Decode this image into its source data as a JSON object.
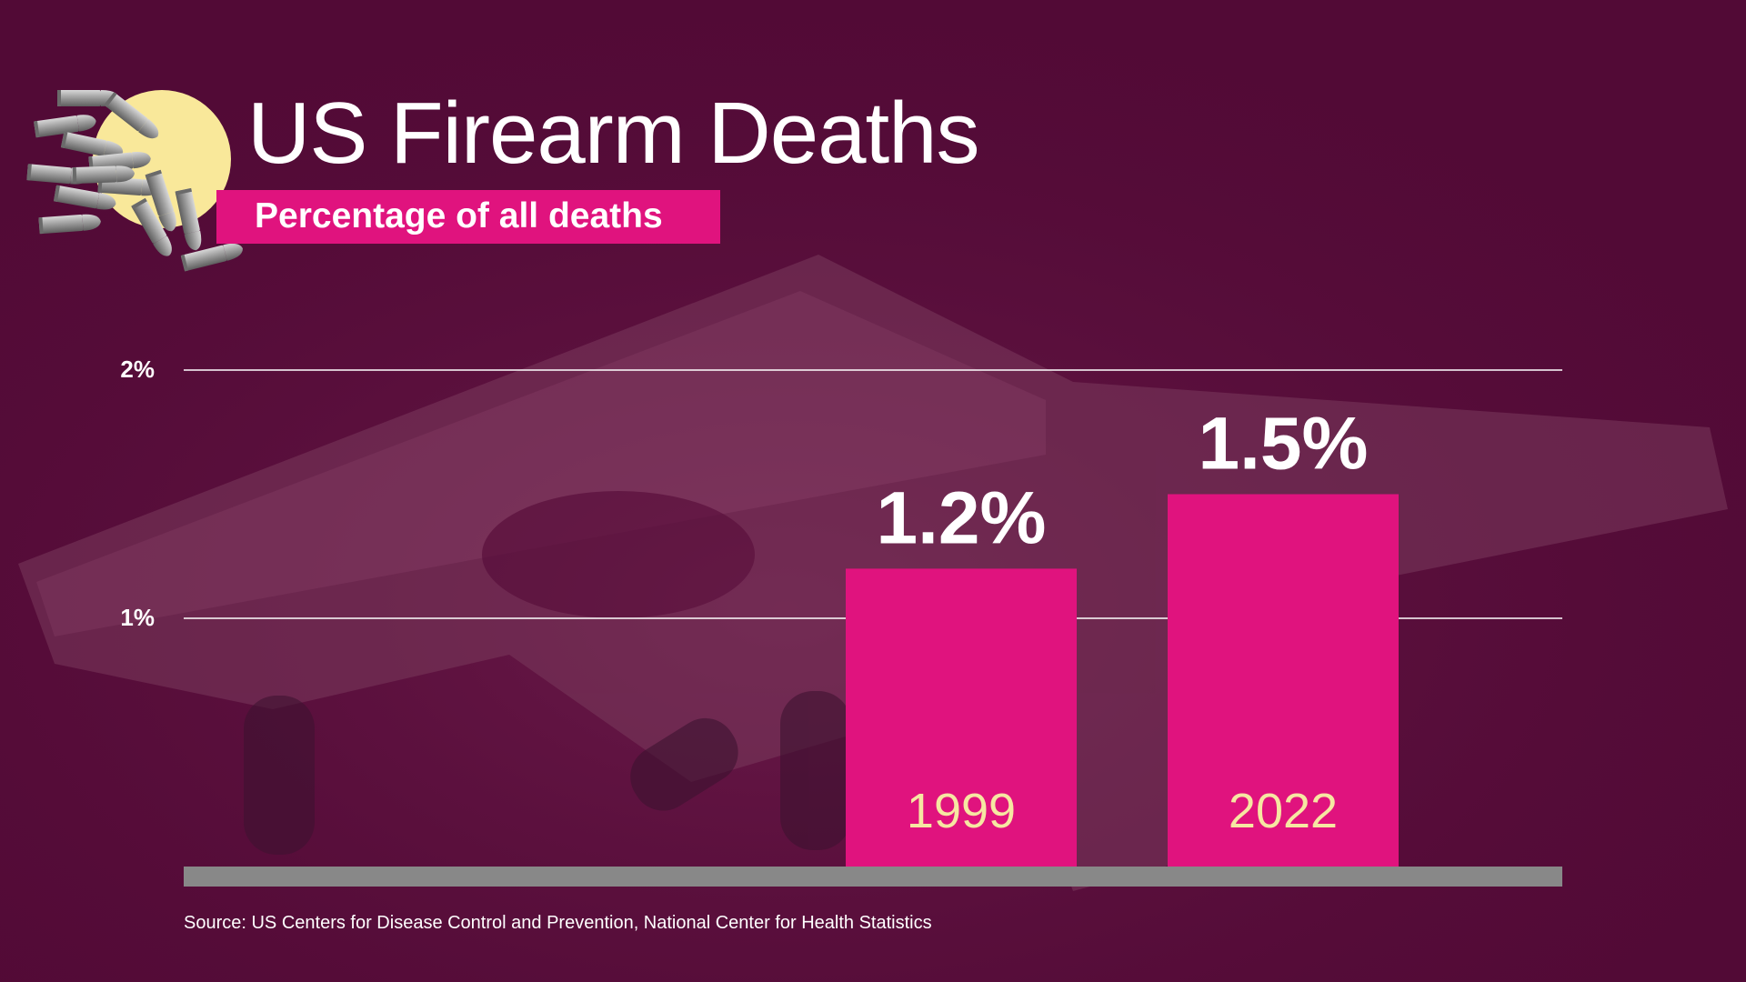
{
  "header": {
    "title": "US Firearm Deaths",
    "subtitle": "Percentage of all deaths"
  },
  "footer": {
    "source": "Source: US Centers for Disease Control and Prevention, National Center for Health Statistics"
  },
  "colors": {
    "background": "#520a36",
    "bar": "#e0137e",
    "category_label": "#f6e7a2",
    "gridline": "#ffffff",
    "baseline": "#888888",
    "sun": "#f9e89a"
  },
  "decoration": {
    "icon": "bullets-icon"
  },
  "chart_data": {
    "type": "bar",
    "categories": [
      "1999",
      "2022"
    ],
    "values": [
      1.2,
      1.5
    ],
    "value_labels": [
      "1.2%",
      "1.5%"
    ],
    "yticks": [
      {
        "value": 1,
        "label": "1%"
      },
      {
        "value": 2,
        "label": "2%"
      }
    ],
    "ylim": [
      0,
      2
    ],
    "grid": true,
    "title": "US Firearm Deaths",
    "subtitle": "Percentage of all deaths"
  }
}
